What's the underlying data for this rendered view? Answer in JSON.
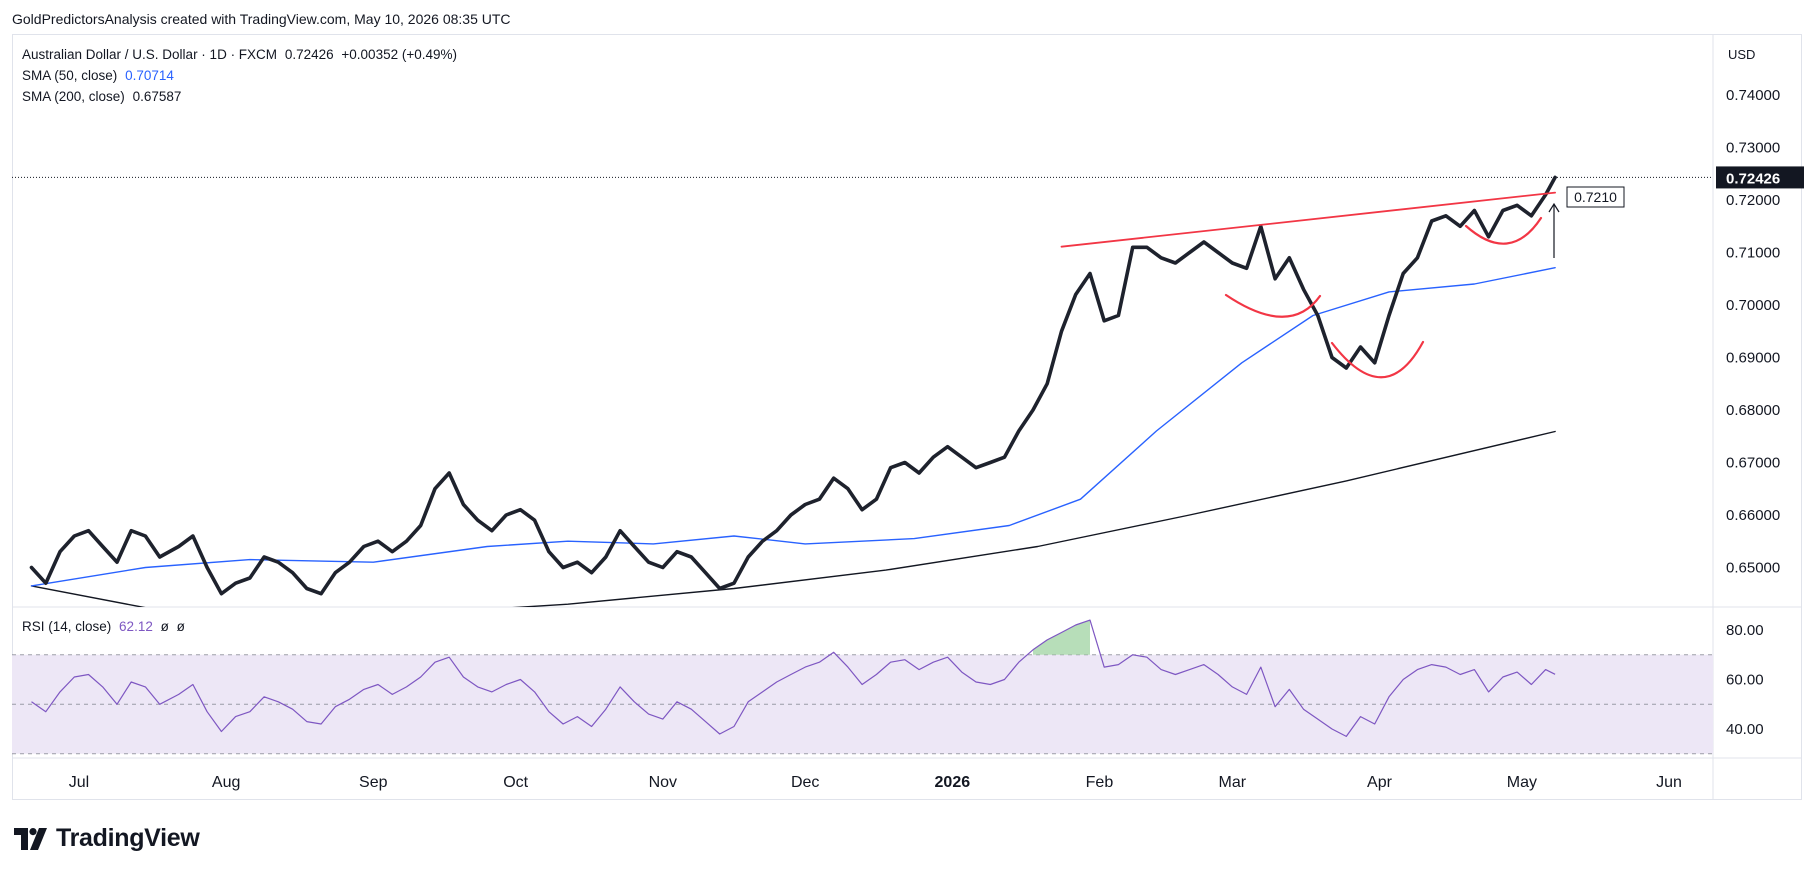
{
  "header": {
    "credit": "GoldPredictorsAnalysis created with TradingView.com, May 10, 2026 08:35 UTC"
  },
  "legend": {
    "symbol_line": "Australian Dollar / U.S. Dollar · 1D · FXCM",
    "last_price": "0.72426",
    "change": "+0.00352 (+0.49%)",
    "sma50_label": "SMA (50, close)",
    "sma50_value": "0.70714",
    "sma200_label": "SMA (200, close)",
    "sma200_value": "0.67587"
  },
  "rsi_legend": {
    "label": "RSI (14, close)",
    "value": "62.12",
    "extra1": "ø",
    "extra2": "ø"
  },
  "price_axis": {
    "currency": "USD",
    "last_price_tag": "0.72426",
    "annotation_value": "0.7210"
  },
  "footer": {
    "brand": "TradingView"
  },
  "colors": {
    "price": "#1e222d",
    "sma50": "#2962ff",
    "sma200": "#131722",
    "trendline": "#f23645",
    "rsi": "#7e57c2",
    "rsi_band": "#ede7f6"
  },
  "chart_data": [
    {
      "type": "line",
      "title": "Australian Dollar / U.S. Dollar · 1D · FXCM",
      "ylabel": "USD",
      "ylim": [
        0.642,
        0.746
      ],
      "x_ticks": [
        "Jul",
        "Aug",
        "Sep",
        "Oct",
        "Nov",
        "Dec",
        "2026",
        "Feb",
        "Mar",
        "Apr",
        "May",
        "Jun"
      ],
      "y_ticks": [
        "0.74000",
        "0.73000",
        "0.72000",
        "0.71000",
        "0.70000",
        "0.69000",
        "0.68000",
        "0.67000",
        "0.66000",
        "0.65000"
      ],
      "series": [
        {
          "name": "Australian Dollar / U.S. Dollar",
          "x": [
            "2025-06-21",
            "2025-06-24",
            "2025-06-27",
            "2025-06-30",
            "2025-07-03",
            "2025-07-06",
            "2025-07-09",
            "2025-07-12",
            "2025-07-15",
            "2025-07-18",
            "2025-07-22",
            "2025-07-25",
            "2025-07-28",
            "2025-07-31",
            "2025-08-03",
            "2025-08-06",
            "2025-08-09",
            "2025-08-12",
            "2025-08-15",
            "2025-08-18",
            "2025-08-21",
            "2025-08-24",
            "2025-08-27",
            "2025-08-30",
            "2025-09-02",
            "2025-09-05",
            "2025-09-08",
            "2025-09-11",
            "2025-09-14",
            "2025-09-17",
            "2025-09-20",
            "2025-09-23",
            "2025-09-26",
            "2025-09-29",
            "2025-10-02",
            "2025-10-05",
            "2025-10-08",
            "2025-10-11",
            "2025-10-14",
            "2025-10-17",
            "2025-10-20",
            "2025-10-23",
            "2025-10-26",
            "2025-10-29",
            "2025-11-01",
            "2025-11-04",
            "2025-11-07",
            "2025-11-10",
            "2025-11-13",
            "2025-11-16",
            "2025-11-19",
            "2025-11-22",
            "2025-11-25",
            "2025-11-28",
            "2025-12-01",
            "2025-12-04",
            "2025-12-07",
            "2025-12-10",
            "2025-12-13",
            "2025-12-16",
            "2025-12-19",
            "2025-12-22",
            "2025-12-25",
            "2025-12-28",
            "2025-12-31",
            "2026-01-03",
            "2026-01-06",
            "2026-01-09",
            "2026-01-12",
            "2026-01-15",
            "2026-01-18",
            "2026-01-21",
            "2026-01-24",
            "2026-01-27",
            "2026-01-30",
            "2026-02-02",
            "2026-02-05",
            "2026-02-08",
            "2026-02-11",
            "2026-02-14",
            "2026-02-17",
            "2026-02-20",
            "2026-02-23",
            "2026-02-26",
            "2026-03-01",
            "2026-03-04",
            "2026-03-07",
            "2026-03-10",
            "2026-03-13",
            "2026-03-16",
            "2026-03-19",
            "2026-03-22",
            "2026-03-25",
            "2026-03-28",
            "2026-03-31",
            "2026-04-03",
            "2026-04-06",
            "2026-04-09",
            "2026-04-12",
            "2026-04-15",
            "2026-04-18",
            "2026-04-21",
            "2026-04-24",
            "2026-04-27",
            "2026-04-30",
            "2026-05-03",
            "2026-05-06",
            "2026-05-08"
          ],
          "values": [
            0.65,
            0.647,
            0.653,
            0.656,
            0.657,
            0.654,
            0.651,
            0.657,
            0.656,
            0.652,
            0.654,
            0.656,
            0.65,
            0.645,
            0.647,
            0.648,
            0.652,
            0.651,
            0.649,
            0.646,
            0.645,
            0.649,
            0.651,
            0.654,
            0.655,
            0.653,
            0.655,
            0.658,
            0.665,
            0.668,
            0.662,
            0.659,
            0.657,
            0.66,
            0.661,
            0.659,
            0.653,
            0.65,
            0.651,
            0.649,
            0.652,
            0.657,
            0.654,
            0.651,
            0.65,
            0.653,
            0.652,
            0.649,
            0.646,
            0.647,
            0.652,
            0.655,
            0.657,
            0.66,
            0.662,
            0.663,
            0.667,
            0.665,
            0.661,
            0.663,
            0.669,
            0.67,
            0.668,
            0.671,
            0.673,
            0.671,
            0.669,
            0.67,
            0.671,
            0.676,
            0.68,
            0.685,
            0.695,
            0.702,
            0.706,
            0.697,
            0.698,
            0.711,
            0.711,
            0.709,
            0.708,
            0.71,
            0.712,
            0.71,
            0.708,
            0.707,
            0.715,
            0.705,
            0.709,
            0.703,
            0.698,
            0.69,
            0.688,
            0.692,
            0.689,
            0.698,
            0.706,
            0.709,
            0.716,
            0.717,
            0.715,
            0.718,
            0.713,
            0.718,
            0.719,
            0.717,
            0.721,
            0.7243
          ]
        },
        {
          "name": "SMA (50, close)",
          "x": [
            "2025-06-21",
            "2025-07-15",
            "2025-08-06",
            "2025-09-01",
            "2025-09-25",
            "2025-10-12",
            "2025-10-30",
            "2025-11-16",
            "2025-12-01",
            "2025-12-24",
            "2026-01-13",
            "2026-01-28",
            "2026-02-13",
            "2026-03-03",
            "2026-03-18",
            "2026-04-03",
            "2026-04-21",
            "2026-05-08"
          ],
          "values": [
            0.6465,
            0.65,
            0.6515,
            0.651,
            0.654,
            0.655,
            0.6545,
            0.656,
            0.6545,
            0.6555,
            0.658,
            0.663,
            0.676,
            0.689,
            0.698,
            0.7025,
            0.704,
            0.7071
          ]
        },
        {
          "name": "SMA (200, close)",
          "x": [
            "2025-06-21",
            "2025-07-17",
            "2025-08-20",
            "2025-10-12",
            "2025-11-16",
            "2025-12-18",
            "2026-01-19",
            "2026-02-20",
            "2026-03-25",
            "2026-05-08"
          ],
          "values": [
            0.6465,
            0.642,
            0.64,
            0.643,
            0.646,
            0.6495,
            0.654,
            0.66,
            0.6665,
            0.6759
          ]
        },
        {
          "name": "Trendline",
          "x": [
            "2026-01-24",
            "2026-05-08"
          ],
          "values": [
            0.7111,
            0.7214
          ]
        }
      ]
    },
    {
      "type": "line",
      "title": "RSI (14, close)",
      "ylim": [
        30,
        85
      ],
      "y_ticks": [
        "80.00",
        "60.00",
        "40.00"
      ],
      "bands": [
        30,
        50,
        70
      ],
      "series": [
        {
          "name": "RSI (14, close)",
          "x": [
            "2025-06-21",
            "2025-06-24",
            "2025-06-27",
            "2025-06-30",
            "2025-07-03",
            "2025-07-06",
            "2025-07-09",
            "2025-07-12",
            "2025-07-15",
            "2025-07-18",
            "2025-07-22",
            "2025-07-25",
            "2025-07-28",
            "2025-07-31",
            "2025-08-03",
            "2025-08-06",
            "2025-08-09",
            "2025-08-12",
            "2025-08-15",
            "2025-08-18",
            "2025-08-21",
            "2025-08-24",
            "2025-08-27",
            "2025-08-30",
            "2025-09-02",
            "2025-09-05",
            "2025-09-08",
            "2025-09-11",
            "2025-09-14",
            "2025-09-17",
            "2025-09-20",
            "2025-09-23",
            "2025-09-26",
            "2025-09-29",
            "2025-10-02",
            "2025-10-05",
            "2025-10-08",
            "2025-10-11",
            "2025-10-14",
            "2025-10-17",
            "2025-10-20",
            "2025-10-23",
            "2025-10-26",
            "2025-10-29",
            "2025-11-01",
            "2025-11-04",
            "2025-11-07",
            "2025-11-10",
            "2025-11-13",
            "2025-11-16",
            "2025-11-19",
            "2025-11-22",
            "2025-11-25",
            "2025-11-28",
            "2025-12-01",
            "2025-12-04",
            "2025-12-07",
            "2025-12-10",
            "2025-12-13",
            "2025-12-16",
            "2025-12-19",
            "2025-12-22",
            "2025-12-25",
            "2025-12-28",
            "2025-12-31",
            "2026-01-03",
            "2026-01-06",
            "2026-01-09",
            "2026-01-12",
            "2026-01-15",
            "2026-01-18",
            "2026-01-21",
            "2026-01-24",
            "2026-01-27",
            "2026-01-30",
            "2026-02-02",
            "2026-02-05",
            "2026-02-08",
            "2026-02-11",
            "2026-02-14",
            "2026-02-17",
            "2026-02-20",
            "2026-02-23",
            "2026-02-26",
            "2026-03-01",
            "2026-03-04",
            "2026-03-07",
            "2026-03-10",
            "2026-03-13",
            "2026-03-16",
            "2026-03-19",
            "2026-03-22",
            "2026-03-25",
            "2026-03-28",
            "2026-03-31",
            "2026-04-03",
            "2026-04-06",
            "2026-04-09",
            "2026-04-12",
            "2026-04-15",
            "2026-04-18",
            "2026-04-21",
            "2026-04-24",
            "2026-04-27",
            "2026-04-30",
            "2026-05-03",
            "2026-05-06",
            "2026-05-08"
          ],
          "values": [
            51,
            47,
            55,
            61,
            62,
            57,
            50,
            59,
            57,
            50,
            54,
            58,
            47,
            39,
            45,
            47,
            53,
            51,
            48,
            43,
            42,
            49,
            52,
            56,
            58,
            54,
            57,
            61,
            67,
            69,
            61,
            57,
            55,
            58,
            60,
            55,
            47,
            42,
            45,
            41,
            48,
            57,
            51,
            46,
            44,
            51,
            48,
            43,
            38,
            41,
            51,
            55,
            59,
            62,
            65,
            67,
            71,
            65,
            58,
            62,
            67,
            68,
            64,
            67,
            69,
            63,
            59,
            58,
            60,
            67,
            72,
            76,
            79,
            82,
            84,
            65,
            66,
            70,
            69,
            64,
            62,
            64,
            66,
            62,
            57,
            54,
            65,
            49,
            56,
            48,
            44,
            40,
            37,
            45,
            42,
            53,
            60,
            64,
            66,
            65,
            62,
            64,
            55,
            61,
            63,
            58,
            64,
            62.12
          ]
        }
      ]
    }
  ]
}
